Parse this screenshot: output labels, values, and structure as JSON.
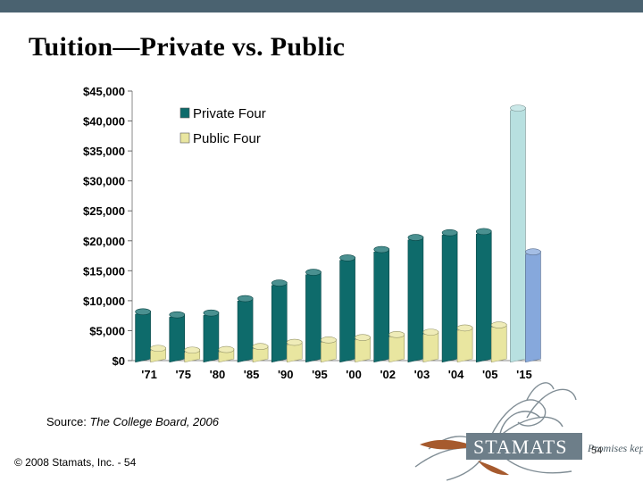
{
  "slide": {
    "title": "Tuition—Private vs. Public",
    "source_label": "Source:",
    "source_text": "The College Board, 2006",
    "copyright": "© 2008 Stamats, Inc. - 54",
    "slide_number": "54",
    "logo_text": "STAMATS",
    "logo_tagline": "Promises kept."
  },
  "colors": {
    "private": "#0e6b6b",
    "public": "#e9e6a0",
    "private_projection": "#b8e0e0",
    "public_projection": "#86a8dc"
  },
  "chart_data": {
    "type": "bar",
    "title": "",
    "xlabel": "",
    "ylabel": "",
    "ylim": [
      0,
      45000
    ],
    "yticks": [
      0,
      5000,
      10000,
      15000,
      20000,
      25000,
      30000,
      35000,
      40000,
      45000
    ],
    "ytick_labels": [
      "$0",
      "$5,000",
      "$10,000",
      "$15,000",
      "$20,000",
      "$25,000",
      "$30,000",
      "$35,000",
      "$40,000",
      "$45,000"
    ],
    "categories": [
      "'71",
      "'75",
      "'80",
      "'85",
      "'90",
      "'95",
      "'00",
      "'02",
      "'03",
      "'04",
      "'05",
      "'15"
    ],
    "series": [
      {
        "name": "Private Four",
        "values": [
          8000,
          7500,
          7800,
          10200,
          12800,
          14600,
          17000,
          18400,
          20400,
          21200,
          21400,
          42000
        ]
      },
      {
        "name": "Public Four",
        "values": [
          1900,
          1600,
          1700,
          2200,
          2900,
          3300,
          3700,
          4200,
          4600,
          5300,
          5800,
          18000
        ]
      }
    ],
    "legend": "top-left",
    "grid": false
  }
}
